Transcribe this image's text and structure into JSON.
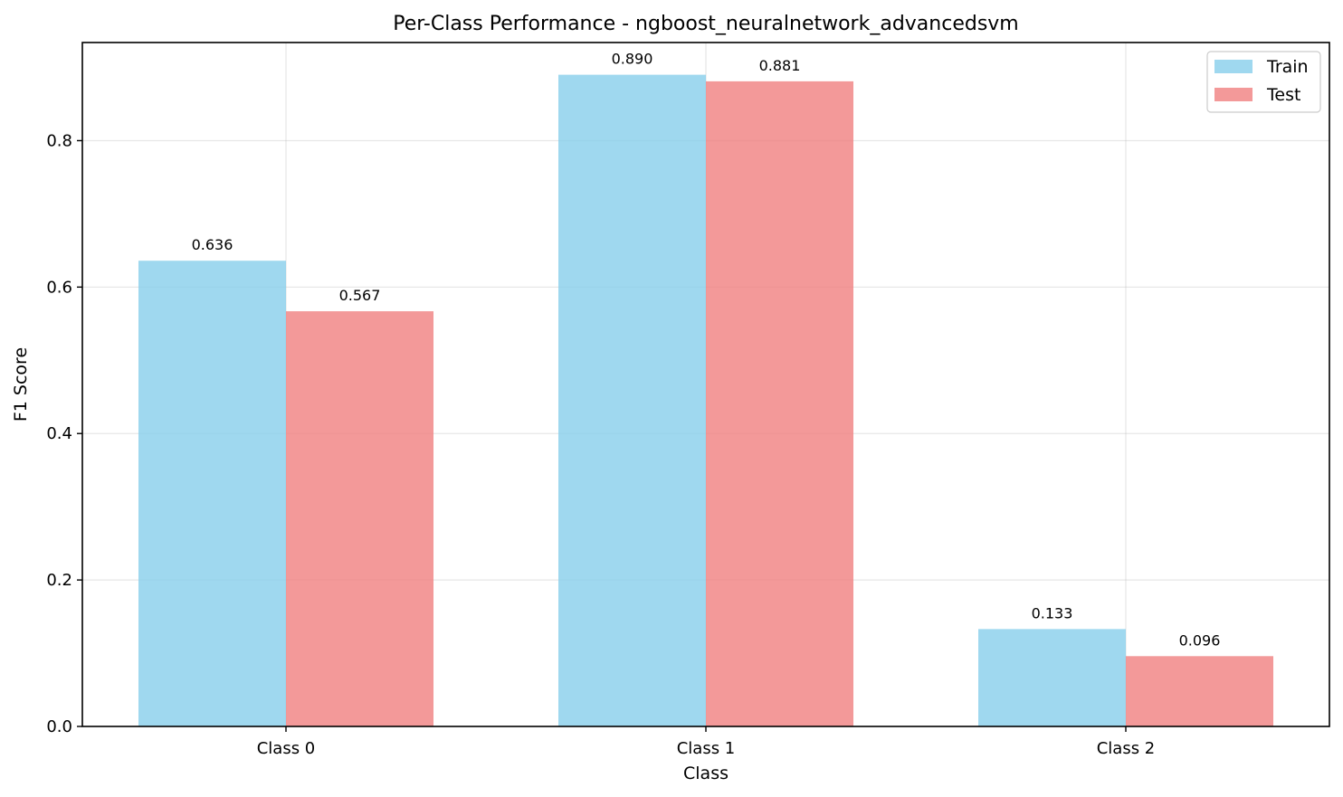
{
  "chart_data": {
    "type": "bar",
    "title": "Per-Class Performance - ngboost_neuralnetwork_advancedsvm",
    "xlabel": "Class",
    "ylabel": "F1 Score",
    "categories": [
      "Class 0",
      "Class 1",
      "Class 2"
    ],
    "series": [
      {
        "name": "Train",
        "values": [
          0.636,
          0.89,
          0.133
        ],
        "labels": [
          "0.636",
          "0.890",
          "0.133"
        ],
        "color": "#87ceeb"
      },
      {
        "name": "Test",
        "values": [
          0.567,
          0.881,
          0.096
        ],
        "labels": [
          "0.567",
          "0.881",
          "0.096"
        ],
        "color": "#f08080"
      }
    ],
    "ylim": [
      0,
      0.934
    ],
    "yticks": [
      0.0,
      0.2,
      0.4,
      0.6,
      0.8
    ],
    "ytick_labels": [
      "0.0",
      "0.2",
      "0.4",
      "0.6",
      "0.8"
    ],
    "grid": true,
    "legend_position": "top-right"
  }
}
